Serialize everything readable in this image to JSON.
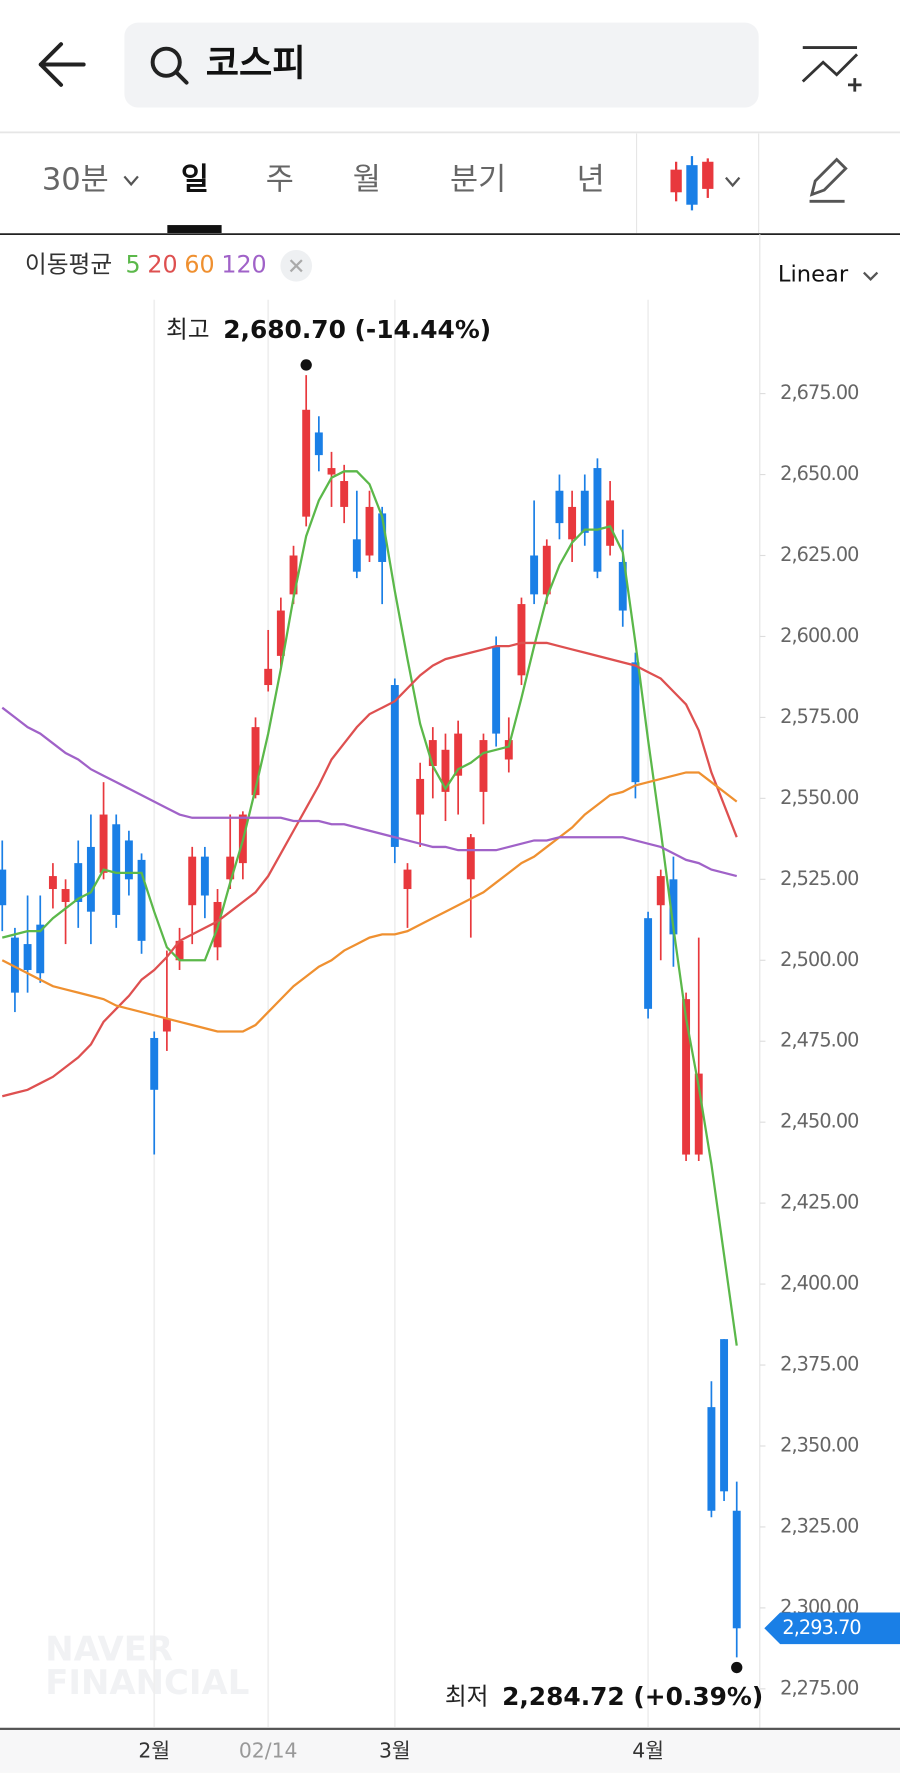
{
  "header": {
    "search": "코스피"
  },
  "tabs": [
    "30분",
    "일",
    "주",
    "월",
    "분기",
    "년"
  ],
  "watermark": [
    "NAVER",
    "FINANCIAL"
  ],
  "chart_data": {
    "type": "candlestick",
    "scale": "Linear",
    "ma_label": "이동평균",
    "up_color": "#e8383d",
    "down_color": "#1a7fe6",
    "categories": [
      null,
      null,
      null,
      null,
      null,
      null,
      null,
      null,
      null,
      null,
      null,
      null,
      "2월",
      null,
      null,
      null,
      null,
      null,
      null,
      null,
      null,
      "02/14",
      null,
      null,
      null,
      null,
      null,
      null,
      null,
      null,
      null,
      "3월",
      null,
      null,
      null,
      null,
      null,
      null,
      null,
      null,
      null,
      null,
      null,
      null,
      null,
      null,
      null,
      null,
      null,
      null,
      null,
      "4월",
      null,
      null,
      null,
      null,
      null,
      null,
      null
    ],
    "open": [
      2528,
      2507,
      2505,
      2511,
      2522,
      2518,
      2530,
      2535,
      2527,
      2542,
      2537,
      2531,
      2476,
      2478,
      2500,
      2517,
      2532,
      2504,
      2525,
      2530,
      2551,
      2585,
      2594,
      2613,
      2637,
      2663,
      2650,
      2640,
      2630,
      2625,
      2638,
      2585,
      2522,
      2545,
      2560,
      2552,
      2557,
      2525,
      2552,
      2597,
      2562,
      2588,
      2625,
      2613,
      2645,
      2630,
      2645,
      2652,
      2628,
      2623,
      2592,
      2513,
      2517,
      2525,
      2440,
      2440,
      2362,
      2383,
      2330
    ],
    "high": [
      2537,
      2510,
      2520,
      2520,
      2530,
      2525,
      2537,
      2545,
      2555,
      2545,
      2540,
      2533,
      2478,
      2503,
      2510,
      2535,
      2535,
      2522,
      2545,
      2546,
      2575,
      2602,
      2612,
      2628,
      2680.7,
      2668,
      2657,
      2653,
      2645,
      2645,
      2640,
      2587,
      2530,
      2561,
      2572,
      2570,
      2574,
      2539,
      2570,
      2600,
      2575,
      2612,
      2642,
      2630,
      2650,
      2645,
      2650,
      2655,
      2648,
      2633,
      2595,
      2515,
      2528,
      2532,
      2490,
      2507,
      2370,
      2383,
      2339
    ],
    "low": [
      2509,
      2484,
      2490,
      2493,
      2516,
      2505,
      2510,
      2505,
      2525,
      2510,
      2520,
      2502,
      2440,
      2472,
      2497,
      2505,
      2513,
      2500,
      2522,
      2525,
      2550,
      2583,
      2590,
      2610,
      2634,
      2651,
      2640,
      2635,
      2618,
      2623,
      2610,
      2530,
      2510,
      2535,
      2550,
      2543,
      2545,
      2507,
      2542,
      2566,
      2558,
      2585,
      2610,
      2610,
      2630,
      2623,
      2628,
      2618,
      2625,
      2603,
      2550,
      2482,
      2500,
      2498,
      2438,
      2438,
      2328,
      2333,
      2284.72
    ],
    "close": [
      2517,
      2490,
      2497,
      2496,
      2526,
      2522,
      2518,
      2515,
      2545,
      2514,
      2525,
      2506,
      2460,
      2482,
      2506,
      2532,
      2520,
      2518,
      2532,
      2545,
      2572,
      2590,
      2608,
      2625,
      2670,
      2656,
      2652,
      2648,
      2620,
      2640,
      2623,
      2535,
      2528,
      2556,
      2568,
      2565,
      2570,
      2538,
      2568,
      2570,
      2568,
      2610,
      2613,
      2628,
      2635,
      2640,
      2632,
      2620,
      2642,
      2608,
      2555,
      2485,
      2526,
      2508,
      2488,
      2465,
      2330,
      2336,
      2293.7
    ],
    "series": [
      {
        "name": "5",
        "color": "#5bb84a",
        "values": [
          2507,
          2508,
          2509,
          2509,
          2513,
          2516,
          2519,
          2521,
          2528,
          2527,
          2527,
          2527,
          2515,
          2504,
          2500,
          2500,
          2500,
          2510,
          2524,
          2537,
          2553,
          2570,
          2590,
          2612,
          2631,
          2642,
          2649,
          2651,
          2651,
          2647,
          2637,
          2614,
          2593,
          2573,
          2560,
          2553,
          2559,
          2561,
          2564,
          2565,
          2566,
          2581,
          2597,
          2612,
          2622,
          2629,
          2633,
          2633,
          2634,
          2626,
          2598,
          2568,
          2540,
          2510,
          2482,
          2461,
          2437,
          2409,
          2381
        ]
      },
      {
        "name": "20",
        "color": "#de5050",
        "values": [
          2458,
          2459,
          2460,
          2462,
          2464,
          2467,
          2470,
          2474,
          2481,
          2485,
          2489,
          2494,
          2497,
          2501,
          2506,
          2508,
          2510,
          2512,
          2515,
          2518,
          2521,
          2526,
          2533,
          2540,
          2547,
          2554,
          2562,
          2567,
          2572,
          2576,
          2578,
          2580,
          2584,
          2588,
          2591,
          2593,
          2594,
          2595,
          2596,
          2597,
          2597,
          2598,
          2598,
          2598,
          2597,
          2596,
          2595,
          2594,
          2593,
          2592,
          2591,
          2589,
          2587,
          2583,
          2579,
          2571,
          2558,
          2548,
          2538
        ]
      },
      {
        "name": "60",
        "color": "#ef9030",
        "values": [
          2500,
          2498,
          2496,
          2494,
          2492,
          2491,
          2490,
          2489,
          2488,
          2486,
          2485,
          2484,
          2483,
          2482,
          2481,
          2480,
          2479,
          2478,
          2478,
          2478,
          2480,
          2484,
          2488,
          2492,
          2495,
          2498,
          2500,
          2503,
          2505,
          2507,
          2508,
          2508,
          2509,
          2511,
          2513,
          2515,
          2517,
          2519,
          2521,
          2524,
          2527,
          2530,
          2532,
          2535,
          2538,
          2541,
          2545,
          2548,
          2551,
          2552,
          2554,
          2555,
          2556,
          2557,
          2558,
          2558,
          2555,
          2552,
          2549
        ]
      },
      {
        "name": "120",
        "color": "#a062c8",
        "values": [
          2578,
          2575,
          2572,
          2570,
          2567,
          2564,
          2562,
          2559,
          2557,
          2555,
          2553,
          2551,
          2549,
          2547,
          2545,
          2544,
          2544,
          2544,
          2544,
          2544,
          2544,
          2544,
          2544,
          2543,
          2543,
          2543,
          2542,
          2542,
          2541,
          2540,
          2539,
          2538,
          2537,
          2536,
          2535,
          2535,
          2534,
          2534,
          2534,
          2534,
          2535,
          2536,
          2537,
          2537,
          2538,
          2538,
          2538,
          2538,
          2538,
          2538,
          2537,
          2536,
          2535,
          2533,
          2531,
          2530,
          2528,
          2527,
          2526
        ]
      }
    ],
    "ylim": [
      2263,
      2704
    ],
    "yticks": [
      {
        "value": 2275,
        "label": "2,275.00"
      },
      {
        "value": 2300,
        "label": "2,300.00"
      },
      {
        "value": 2325,
        "label": "2,325.00"
      },
      {
        "value": 2350,
        "label": "2,350.00"
      },
      {
        "value": 2375,
        "label": "2,375.00"
      },
      {
        "value": 2400,
        "label": "2,400.00"
      },
      {
        "value": 2425,
        "label": "2,425.00"
      },
      {
        "value": 2450,
        "label": "2,450.00"
      },
      {
        "value": 2475,
        "label": "2,475.00"
      },
      {
        "value": 2500,
        "label": "2,500.00"
      },
      {
        "value": 2525,
        "label": "2,525.00"
      },
      {
        "value": 2550,
        "label": "2,550.00"
      },
      {
        "value": 2575,
        "label": "2,575.00"
      },
      {
        "value": 2600,
        "label": "2,600.00"
      },
      {
        "value": 2625,
        "label": "2,625.00"
      },
      {
        "value": 2650,
        "label": "2,650.00"
      },
      {
        "value": 2675,
        "label": "2,675.00"
      }
    ],
    "grid": true,
    "annotations": [
      {
        "label": "최고",
        "value": 2680.7,
        "value_label": "2,680.70 (-14.44%)",
        "index": 24,
        "side": "top"
      },
      {
        "label": "최저",
        "value": 2284.72,
        "value_label": "2,284.72 (+0.39%)",
        "index": 58,
        "side": "bottom"
      }
    ],
    "current": {
      "value": 2293.7,
      "label": "2,293.70"
    }
  }
}
